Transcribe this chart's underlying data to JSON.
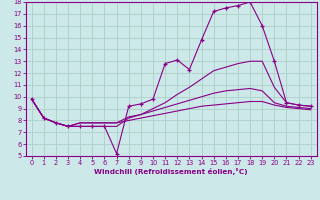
{
  "background_color": "#cde8e8",
  "grid_color": "#b0d4cc",
  "line_color": "#880088",
  "xlabel": "Windchill (Refroidissement éolien,°C)",
  "xlim": [
    -0.5,
    23.5
  ],
  "ylim": [
    5,
    18
  ],
  "xticks": [
    0,
    1,
    2,
    3,
    4,
    5,
    6,
    7,
    8,
    9,
    10,
    11,
    12,
    13,
    14,
    15,
    16,
    17,
    18,
    19,
    20,
    21,
    22,
    23
  ],
  "yticks": [
    5,
    6,
    7,
    8,
    9,
    10,
    11,
    12,
    13,
    14,
    15,
    16,
    17,
    18
  ],
  "series": [
    {
      "x": [
        0,
        1,
        2,
        3,
        4,
        5,
        6,
        7,
        8,
        9,
        10,
        11,
        12,
        13,
        14,
        15,
        16,
        17,
        18,
        19,
        20,
        21,
        22,
        23
      ],
      "y": [
        9.8,
        8.2,
        7.8,
        7.5,
        7.5,
        7.5,
        7.5,
        5.2,
        9.2,
        9.4,
        9.8,
        12.8,
        13.1,
        12.3,
        14.8,
        17.2,
        17.5,
        17.7,
        18.0,
        16.0,
        13.0,
        9.5,
        9.3,
        9.2
      ],
      "marker": "+"
    },
    {
      "x": [
        0,
        1,
        2,
        3,
        4,
        5,
        6,
        7,
        8,
        9,
        10,
        11,
        12,
        13,
        14,
        15,
        16,
        17,
        18,
        19,
        20,
        21,
        22,
        23
      ],
      "y": [
        9.8,
        8.2,
        7.8,
        7.5,
        7.5,
        7.5,
        7.5,
        7.5,
        8.2,
        8.5,
        9.0,
        9.5,
        10.2,
        10.8,
        11.5,
        12.2,
        12.5,
        12.8,
        13.0,
        13.0,
        10.8,
        9.5,
        9.3,
        9.2
      ],
      "marker": null
    },
    {
      "x": [
        0,
        1,
        2,
        3,
        4,
        5,
        6,
        7,
        8,
        9,
        10,
        11,
        12,
        13,
        14,
        15,
        16,
        17,
        18,
        19,
        20,
        21,
        22,
        23
      ],
      "y": [
        9.8,
        8.2,
        7.8,
        7.5,
        7.8,
        7.8,
        7.8,
        7.8,
        8.3,
        8.5,
        8.8,
        9.1,
        9.4,
        9.7,
        10.0,
        10.3,
        10.5,
        10.6,
        10.7,
        10.5,
        9.5,
        9.2,
        9.1,
        9.0
      ],
      "marker": null
    },
    {
      "x": [
        0,
        1,
        2,
        3,
        4,
        5,
        6,
        7,
        8,
        9,
        10,
        11,
        12,
        13,
        14,
        15,
        16,
        17,
        18,
        19,
        20,
        21,
        22,
        23
      ],
      "y": [
        9.8,
        8.2,
        7.8,
        7.5,
        7.8,
        7.8,
        7.8,
        7.8,
        8.0,
        8.2,
        8.4,
        8.6,
        8.8,
        9.0,
        9.2,
        9.3,
        9.4,
        9.5,
        9.6,
        9.6,
        9.3,
        9.1,
        9.0,
        8.9
      ],
      "marker": null
    }
  ]
}
